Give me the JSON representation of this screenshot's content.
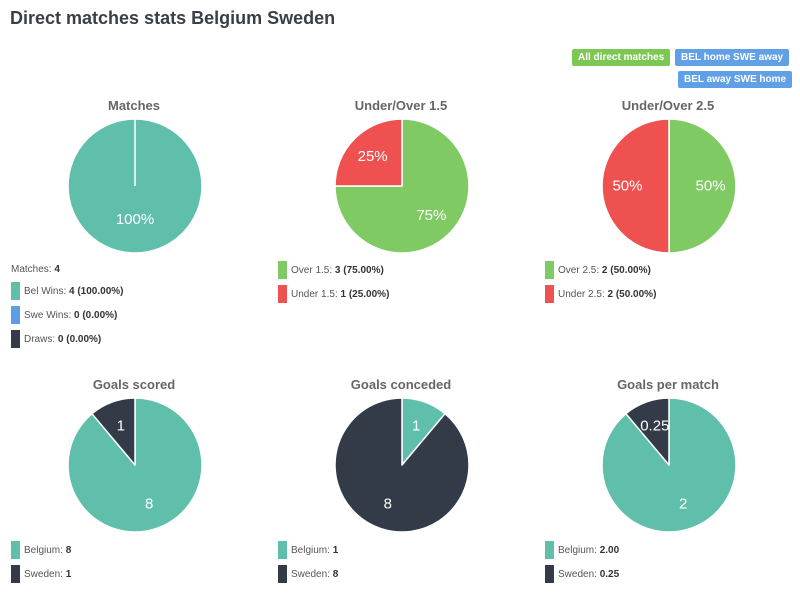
{
  "page": {
    "title": "Direct matches stats Belgium Sweden"
  },
  "filters": [
    {
      "label": "All direct matches",
      "color": "#7dc855"
    },
    {
      "label": "BEL home SWE away",
      "color": "#5fa0e6"
    },
    {
      "label": "BEL away SWE home",
      "color": "#5fa0e6"
    }
  ],
  "colors": {
    "teal": "#5fbfaa",
    "green": "#7fca62",
    "red": "#ef5050",
    "dark": "#323b47",
    "blue": "#5b9ee8"
  },
  "chart_data": [
    {
      "id": "matches",
      "type": "pie",
      "title": "Matches",
      "slices": [
        {
          "name": "Bel Wins",
          "value": 4,
          "label": "100%",
          "color": "#5fbfaa"
        }
      ],
      "summary": {
        "label": "Matches:",
        "value": "4"
      },
      "legend": [
        {
          "label": "Bel Wins:",
          "value": "4 (100.00%)",
          "color": "#5fbfaa"
        },
        {
          "label": "Swe Wins:",
          "value": "0 (0.00%)",
          "color": "#5b9ee8"
        },
        {
          "label": "Draws:",
          "value": "0 (0.00%)",
          "color": "#323b47"
        }
      ]
    },
    {
      "id": "under-over-1-5",
      "type": "pie",
      "title": "Under/Over 1.5",
      "slices": [
        {
          "name": "Over 1.5",
          "value": 3,
          "label": "75%",
          "color": "#7fca62"
        },
        {
          "name": "Under 1.5",
          "value": 1,
          "label": "25%",
          "color": "#ef5050"
        }
      ],
      "legend": [
        {
          "label": "Over 1.5:",
          "value": "3 (75.00%)",
          "color": "#7fca62"
        },
        {
          "label": "Under 1.5:",
          "value": "1 (25.00%)",
          "color": "#ef5050"
        }
      ]
    },
    {
      "id": "under-over-2-5",
      "type": "pie",
      "title": "Under/Over 2.5",
      "slices": [
        {
          "name": "Over 2.5",
          "value": 2,
          "label": "50%",
          "color": "#7fca62"
        },
        {
          "name": "Under 2.5",
          "value": 2,
          "label": "50%",
          "color": "#ef5050"
        }
      ],
      "legend": [
        {
          "label": "Over 2.5:",
          "value": "2 (50.00%)",
          "color": "#7fca62"
        },
        {
          "label": "Under 2.5:",
          "value": "2 (50.00%)",
          "color": "#ef5050"
        }
      ]
    },
    {
      "id": "goals-scored",
      "type": "pie",
      "title": "Goals scored",
      "slices": [
        {
          "name": "Belgium",
          "value": 8,
          "label": "8",
          "color": "#5fbfaa"
        },
        {
          "name": "Sweden",
          "value": 1,
          "label": "1",
          "color": "#323b47"
        }
      ],
      "legend": [
        {
          "label": "Belgium:",
          "value": "8",
          "color": "#5fbfaa"
        },
        {
          "label": "Sweden:",
          "value": "1",
          "color": "#323b47"
        }
      ]
    },
    {
      "id": "goals-conceded",
      "type": "pie",
      "title": "Goals conceded",
      "slices": [
        {
          "name": "Belgium",
          "value": 1,
          "label": "1",
          "color": "#5fbfaa"
        },
        {
          "name": "Sweden",
          "value": 8,
          "label": "8",
          "color": "#323b47"
        }
      ],
      "legend": [
        {
          "label": "Belgium:",
          "value": "1",
          "color": "#5fbfaa"
        },
        {
          "label": "Sweden:",
          "value": "8",
          "color": "#323b47"
        }
      ]
    },
    {
      "id": "goals-per-match",
      "type": "pie",
      "title": "Goals per match",
      "slices": [
        {
          "name": "Belgium",
          "value": 2.0,
          "label": "2",
          "color": "#5fbfaa"
        },
        {
          "name": "Sweden",
          "value": 0.25,
          "label": "0.25",
          "color": "#323b47"
        }
      ],
      "legend": [
        {
          "label": "Belgium:",
          "value": "2.00",
          "color": "#5fbfaa"
        },
        {
          "label": "Sweden:",
          "value": "0.25",
          "color": "#323b47"
        }
      ]
    }
  ]
}
